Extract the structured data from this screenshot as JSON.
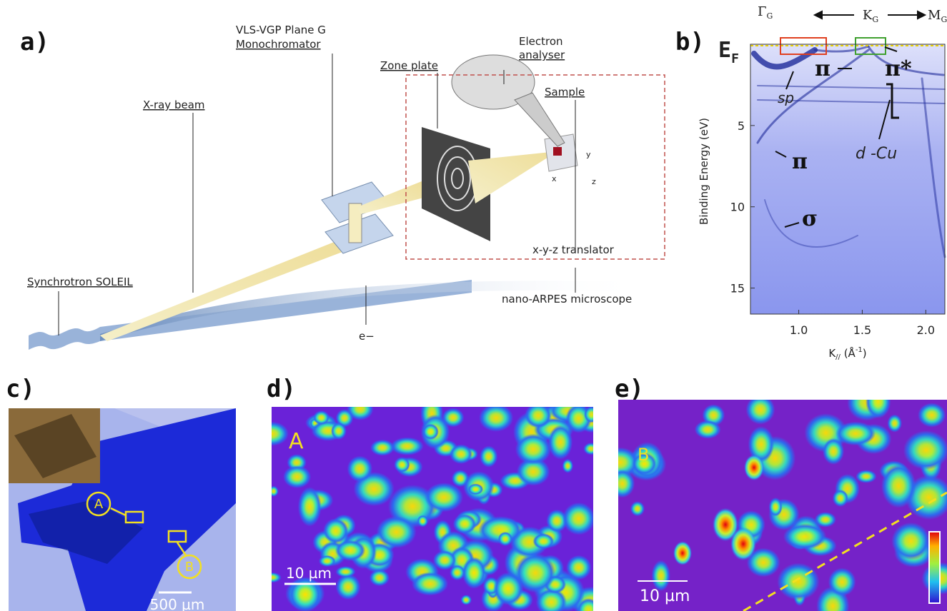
{
  "panel_a": {
    "label": "a)",
    "monochromator_line1": "VLS-VGP Plane G",
    "monochromator_line2": "Monochromator",
    "zone_plate": "Zone plate",
    "analyser_line1": "Electron",
    "analyser_line2": "analyser",
    "xray_beam": "X-ray beam",
    "sample": "Sample",
    "synchrotron": "Synchrotron SOLEIL",
    "translator": "x-y-z translator",
    "microscope": "nano-ARPES microscope",
    "electron": "e−",
    "axis_x": "x",
    "axis_y": "y",
    "axis_z": "z"
  },
  "panel_b": {
    "label": "b)",
    "gamma": {
      "base": "Γ",
      "sub": "G"
    },
    "k_point": {
      "base": "K",
      "sub": "G"
    },
    "m_point": {
      "base": "M",
      "sub": "G"
    },
    "fermi": {
      "base": "E",
      "sub": "F"
    },
    "pi_upper": "π",
    "pi_star": "π*",
    "sp": "sp",
    "d_cu": "d -Cu",
    "pi_lower": "π",
    "sigma": "σ",
    "ylabel": "Binding Energy (eV)",
    "xlabel": {
      "base": "K",
      "sub": "//",
      "rest": " (Å",
      "sup": "-1",
      "end": ")"
    },
    "xlim": [
      0.62,
      2.15
    ],
    "ylim": [
      0,
      16.6
    ],
    "xticks": [
      {
        "value": 1,
        "label": "1.0"
      },
      1.5,
      {
        "value": 2,
        "label": "2.0"
      }
    ],
    "yticks": [
      5,
      10,
      15
    ]
  },
  "panel_c": {
    "label": "c)",
    "marker_a": "A",
    "marker_b": "B",
    "scale": "500 µm"
  },
  "panel_d": {
    "label": "d)",
    "region": "A",
    "scale": "10 µm"
  },
  "panel_e": {
    "label": "e)",
    "region": "B",
    "scale": "10 µm"
  }
}
